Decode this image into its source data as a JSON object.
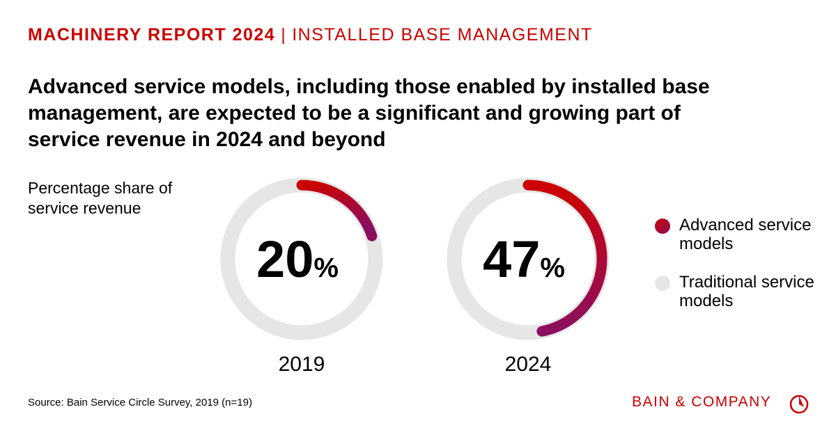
{
  "header": {
    "report": "MACHINERY REPORT 2024",
    "separator": "|",
    "section": "INSTALLED BASE MANAGEMENT"
  },
  "title": "Advanced service models, including those enabled by installed base management, are expected to be a significant and growing part of service revenue in 2024 and beyond",
  "subtitle": "Percentage share of service revenue",
  "chart_data": {
    "type": "pie",
    "variant": "donut",
    "charts": [
      {
        "category": "2019",
        "value": 20,
        "label": "20",
        "unit": "%"
      },
      {
        "category": "2024",
        "value": 47,
        "label": "47",
        "unit": "%"
      }
    ],
    "series": [
      {
        "name": "Advanced service models",
        "color": "#cc0000",
        "color_end": "#8a0f5e"
      },
      {
        "name": "Traditional service models",
        "color": "#e6e6e6"
      }
    ],
    "legend": "right"
  },
  "legend": {
    "items": [
      {
        "label": "Advanced service models"
      },
      {
        "label": "Traditional service models"
      }
    ]
  },
  "source": "Source: Bain Service Circle Survey, 2019 (n=19)",
  "logo": {
    "text": "BAIN & COMPANY",
    "icon": "bain-logo-icon"
  },
  "colors": {
    "brand": "#cc0000"
  }
}
